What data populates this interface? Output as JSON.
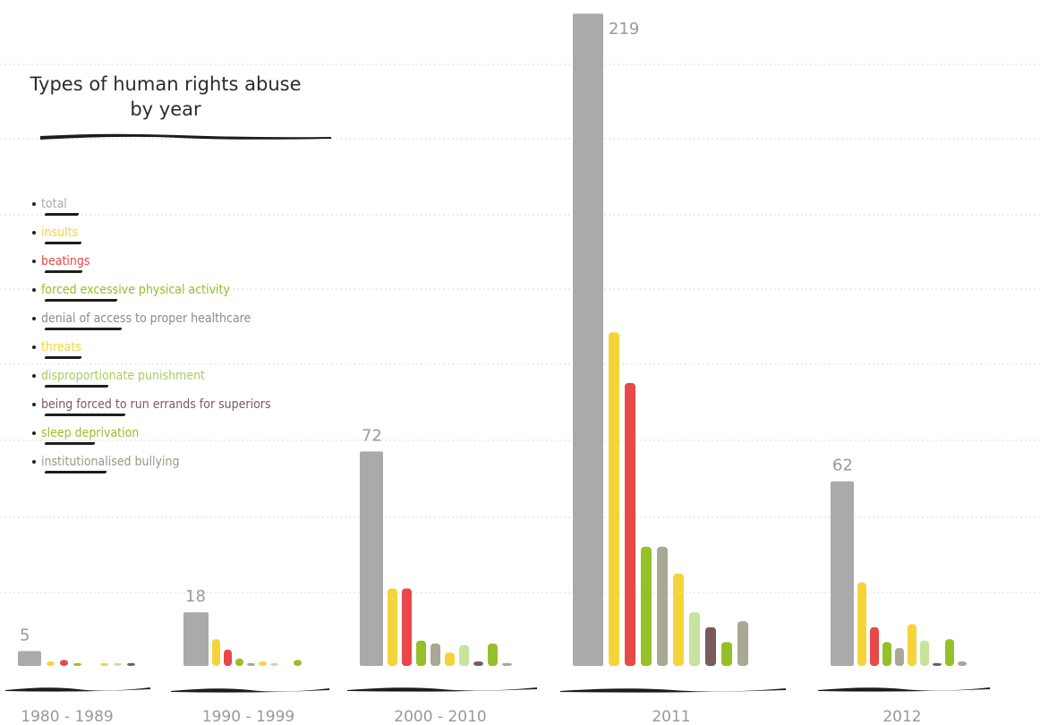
{
  "chart_data": {
    "type": "bar",
    "title": "Types of human rights abuse by year",
    "categories": [
      "1980 - 1989",
      "1990 - 1999",
      "2000 - 2010",
      "2011",
      "2012"
    ],
    "series": [
      {
        "name": "total",
        "color": "#aaaaaa",
        "values": [
          5,
          18,
          72,
          219,
          62
        ]
      },
      {
        "name": "insults",
        "color": "#f5d43a",
        "values": [
          1.5,
          9,
          26,
          112,
          28
        ]
      },
      {
        "name": "beatings",
        "color": "#e84848",
        "values": [
          2,
          5.5,
          26,
          95,
          13
        ]
      },
      {
        "name": "forced excessive physical activity",
        "color": "#95c02a",
        "values": [
          1,
          2.5,
          8.5,
          40,
          8
        ]
      },
      {
        "name": "denial of access to proper healthcare",
        "color": "#a9a795",
        "values": [
          0,
          1,
          7.5,
          40,
          6
        ]
      },
      {
        "name": "threats",
        "color": "#f5d43a",
        "values": [
          1,
          1.5,
          4.5,
          31,
          14
        ]
      },
      {
        "name": "disproportionate punishment",
        "color": "#c8e39d",
        "values": [
          1,
          1,
          7,
          18,
          8.5
        ]
      },
      {
        "name": "being forced to run errands for superiors",
        "color": "#7a5a5a",
        "values": [
          1,
          0,
          1.5,
          13,
          1
        ]
      },
      {
        "name": "sleep deprivation",
        "color": "#95c02a",
        "values": [
          0,
          2,
          7.5,
          8,
          9
        ]
      },
      {
        "name": "institutionalised bullying",
        "color": "#a9a795",
        "values": [
          0,
          0,
          1,
          15,
          1.5
        ]
      }
    ],
    "total_labels": [
      "5",
      "18",
      "72",
      "219",
      "62"
    ],
    "ylim": [
      0,
      220
    ],
    "grid": true,
    "legend_position": "left"
  }
}
